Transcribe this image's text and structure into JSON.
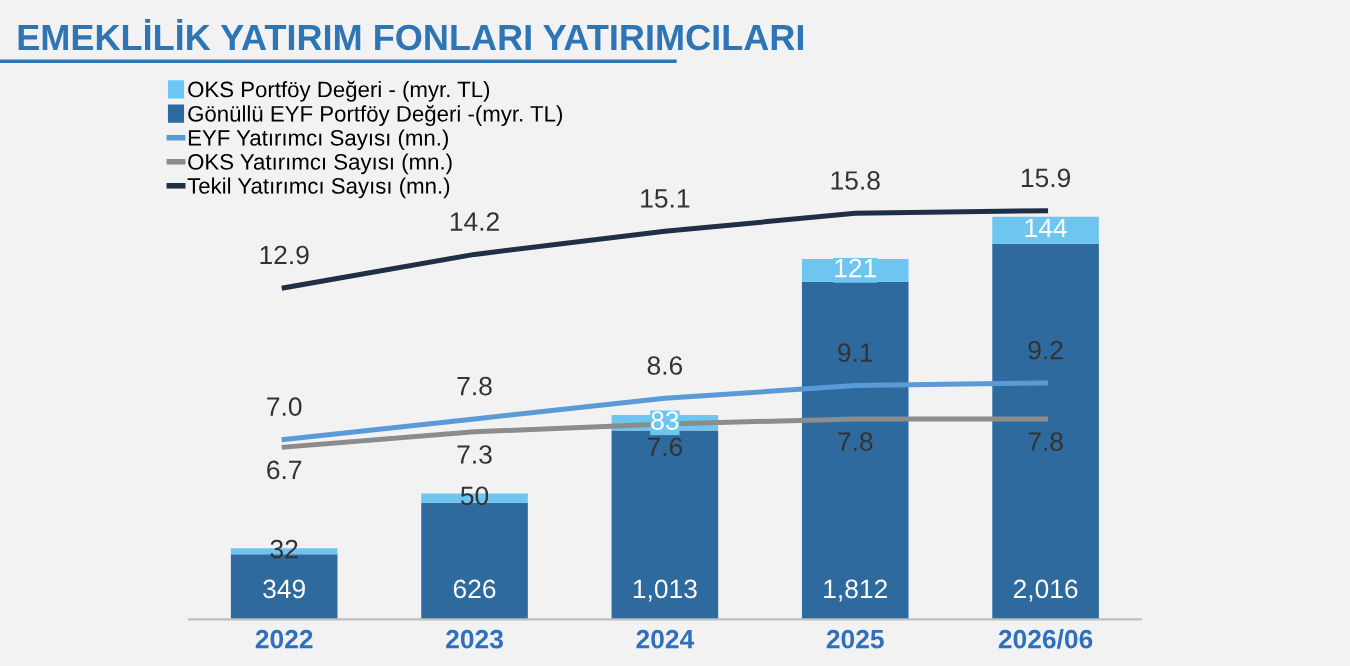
{
  "chart_data": {
    "type": "bar",
    "title": "EMEKLİLİK YATIRIM FONLARI YATIRIMCILARI",
    "stacked": true,
    "legend": "top left",
    "grid": false,
    "tick_labels": "x",
    "categories": [
      "2022",
      "2023",
      "2024",
      "2025",
      "2026/06"
    ],
    "series": [
      {
        "name": "Gönüllü EYF Portföy Değeri -(myr. TL)",
        "color": "#2e6a9e",
        "values": [
          349,
          626,
          1013,
          1812,
          2016
        ],
        "value_labels": [
          "349",
          "626",
          "1,013",
          "1,812",
          "2,016"
        ]
      },
      {
        "name": "OKS Portföy Değeri - (myr. TL)",
        "color": "#6ec6f0",
        "values": [
          32,
          50,
          83,
          121,
          144
        ],
        "value_labels": [
          "32",
          "50",
          "83",
          "121",
          "144"
        ]
      },
      {
        "name": "EYF Yatırımcı Sayısı (mn.)",
        "type": "line",
        "axis": "y2",
        "color": "#5b9bd5",
        "values": [
          7.0,
          7.8,
          8.6,
          9.1,
          9.2
        ],
        "value_labels": [
          "7.0",
          "7.8",
          "8.6",
          "9.1",
          "9.2"
        ]
      },
      {
        "name": "OKS Yatırımcı Sayısı (mn.)",
        "type": "line",
        "axis": "y2",
        "color": "#8c8c8c",
        "values": [
          6.7,
          7.3,
          7.6,
          7.8,
          7.8
        ],
        "value_labels": [
          "6.7",
          "7.3",
          "7.6",
          "7.8",
          "7.8"
        ]
      },
      {
        "name": "Tekil Yatırımcı Sayısı (mn.)",
        "type": "line",
        "axis": "y2",
        "color": "#1f2f45",
        "values": [
          12.9,
          14.2,
          15.1,
          15.8,
          15.9
        ],
        "value_labels": [
          "12.9",
          "14.2",
          "15.1",
          "15.8",
          "15.9"
        ]
      }
    ]
  }
}
